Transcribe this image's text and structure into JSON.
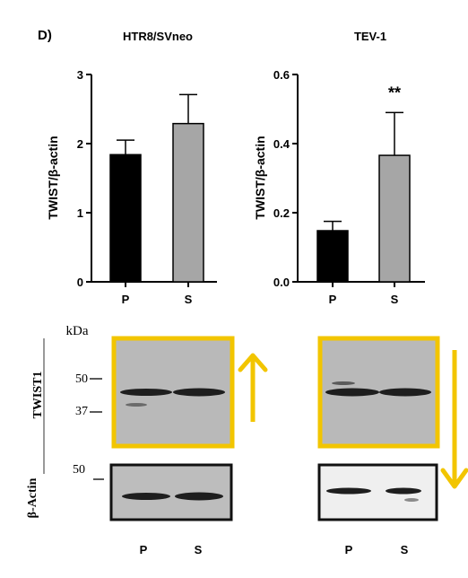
{
  "panel_label": "D)",
  "colors": {
    "bar_p": "#000000",
    "bar_s": "#a6a6a6",
    "highlight": "#f2c500",
    "blot_bg": "#b9b9b9",
    "band": "#1e1e1e"
  },
  "chart_data": [
    {
      "type": "bar",
      "title": "HTR8/SVneo",
      "ylabel": "TWIST/β-actin",
      "categories": [
        "P",
        "S"
      ],
      "values": [
        1.84,
        2.29
      ],
      "errors": [
        0.21,
        0.42
      ],
      "ylim": [
        0,
        3
      ],
      "yticks": [
        "0",
        "1",
        "2",
        "3"
      ],
      "significance": [
        "",
        ""
      ]
    },
    {
      "type": "bar",
      "title": "TEV-1",
      "ylabel": "TWIST/β-actin",
      "categories": [
        "P",
        "S"
      ],
      "values": [
        0.148,
        0.366
      ],
      "errors": [
        0.027,
        0.124
      ],
      "ylim": [
        0,
        0.6
      ],
      "yticks": [
        "0.0",
        "0.2",
        "0.4",
        "0.6"
      ],
      "significance": [
        "",
        "**"
      ]
    }
  ],
  "blot": {
    "kda_label": "kDa",
    "twist_label": "TWIST1",
    "actin_label": "β-Actin",
    "markers_top": [
      "50",
      "37"
    ],
    "marker_bottom": "50",
    "lanes_left": [
      "P",
      "S"
    ],
    "lanes_right": [
      "P",
      "S"
    ],
    "arrow_left": "up",
    "arrow_right": "down"
  }
}
